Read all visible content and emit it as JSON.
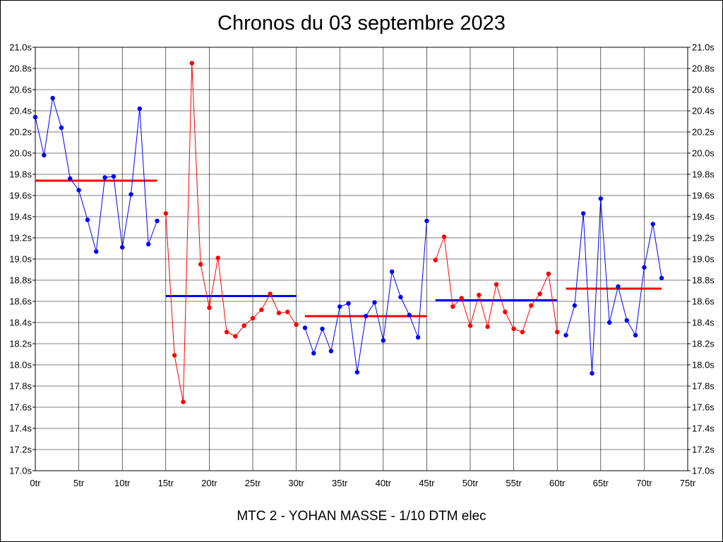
{
  "title": "Chronos du 03 septembre 2023",
  "subtitle": "MTC 2 - YOHAN MASSE - 1/10 DTM elec",
  "chart_data": {
    "type": "line",
    "title": "Chronos du 03 septembre 2023",
    "xlabel": "",
    "ylabel": "",
    "xlim": [
      0,
      75
    ],
    "ylim": [
      17.0,
      21.0
    ],
    "x_ticks": [
      "0tr",
      "5tr",
      "10tr",
      "15tr",
      "20tr",
      "25tr",
      "30tr",
      "35tr",
      "40tr",
      "45tr",
      "50tr",
      "55tr",
      "60tr",
      "65tr",
      "70tr",
      "75tr"
    ],
    "y_ticks": [
      "17.0s",
      "17.2s",
      "17.4s",
      "17.6s",
      "17.8s",
      "18.0s",
      "18.2s",
      "18.4s",
      "18.6s",
      "18.8s",
      "19.0s",
      "19.2s",
      "19.4s",
      "19.6s",
      "19.8s",
      "20.0s",
      "20.2s",
      "20.4s",
      "20.6s",
      "20.8s",
      "21.0s"
    ],
    "grid": true,
    "y_axis_both_sides": true,
    "series": [
      {
        "color": "#0000ff",
        "x_start": 0,
        "values": [
          20.34,
          19.98,
          20.52,
          20.24,
          19.76,
          19.65,
          19.37,
          19.07,
          19.77,
          19.78,
          19.11,
          19.61,
          20.42,
          19.14,
          19.36
        ]
      },
      {
        "color": "#ff0000",
        "x_start": 15,
        "values": [
          19.43,
          18.09,
          17.65,
          20.85,
          18.95,
          18.54,
          19.01,
          18.31,
          18.27,
          18.37,
          18.44,
          18.52,
          18.67,
          18.49,
          18.5,
          18.38
        ]
      },
      {
        "color": "#0000ff",
        "x_start": 31,
        "values": [
          18.35,
          18.11,
          18.34,
          18.13,
          18.55,
          18.58,
          17.93,
          18.46,
          18.59,
          18.23,
          18.88,
          18.64,
          18.47,
          18.26,
          19.36
        ]
      },
      {
        "color": "#ff0000",
        "x_start": 46,
        "values": [
          18.99,
          19.21,
          18.55,
          18.63,
          18.37,
          18.66,
          18.36,
          18.76,
          18.5,
          18.34,
          18.31,
          18.56,
          18.67,
          18.86,
          18.31
        ]
      },
      {
        "color": "#0000ff",
        "x_start": 61,
        "values": [
          18.28,
          18.56,
          19.43,
          17.92,
          19.57,
          18.4,
          18.74,
          18.42,
          18.28,
          18.92,
          19.33,
          18.82
        ]
      }
    ],
    "averages": [
      {
        "color": "#ff0000",
        "x_from": 0,
        "x_to": 14,
        "value": 19.74
      },
      {
        "color": "#0000ff",
        "x_from": 15,
        "x_to": 30,
        "value": 18.65
      },
      {
        "color": "#ff0000",
        "x_from": 31,
        "x_to": 45,
        "value": 18.46
      },
      {
        "color": "#0000ff",
        "x_from": 46,
        "x_to": 60,
        "value": 18.61
      },
      {
        "color": "#ff0000",
        "x_from": 61,
        "x_to": 72,
        "value": 18.72
      }
    ]
  }
}
